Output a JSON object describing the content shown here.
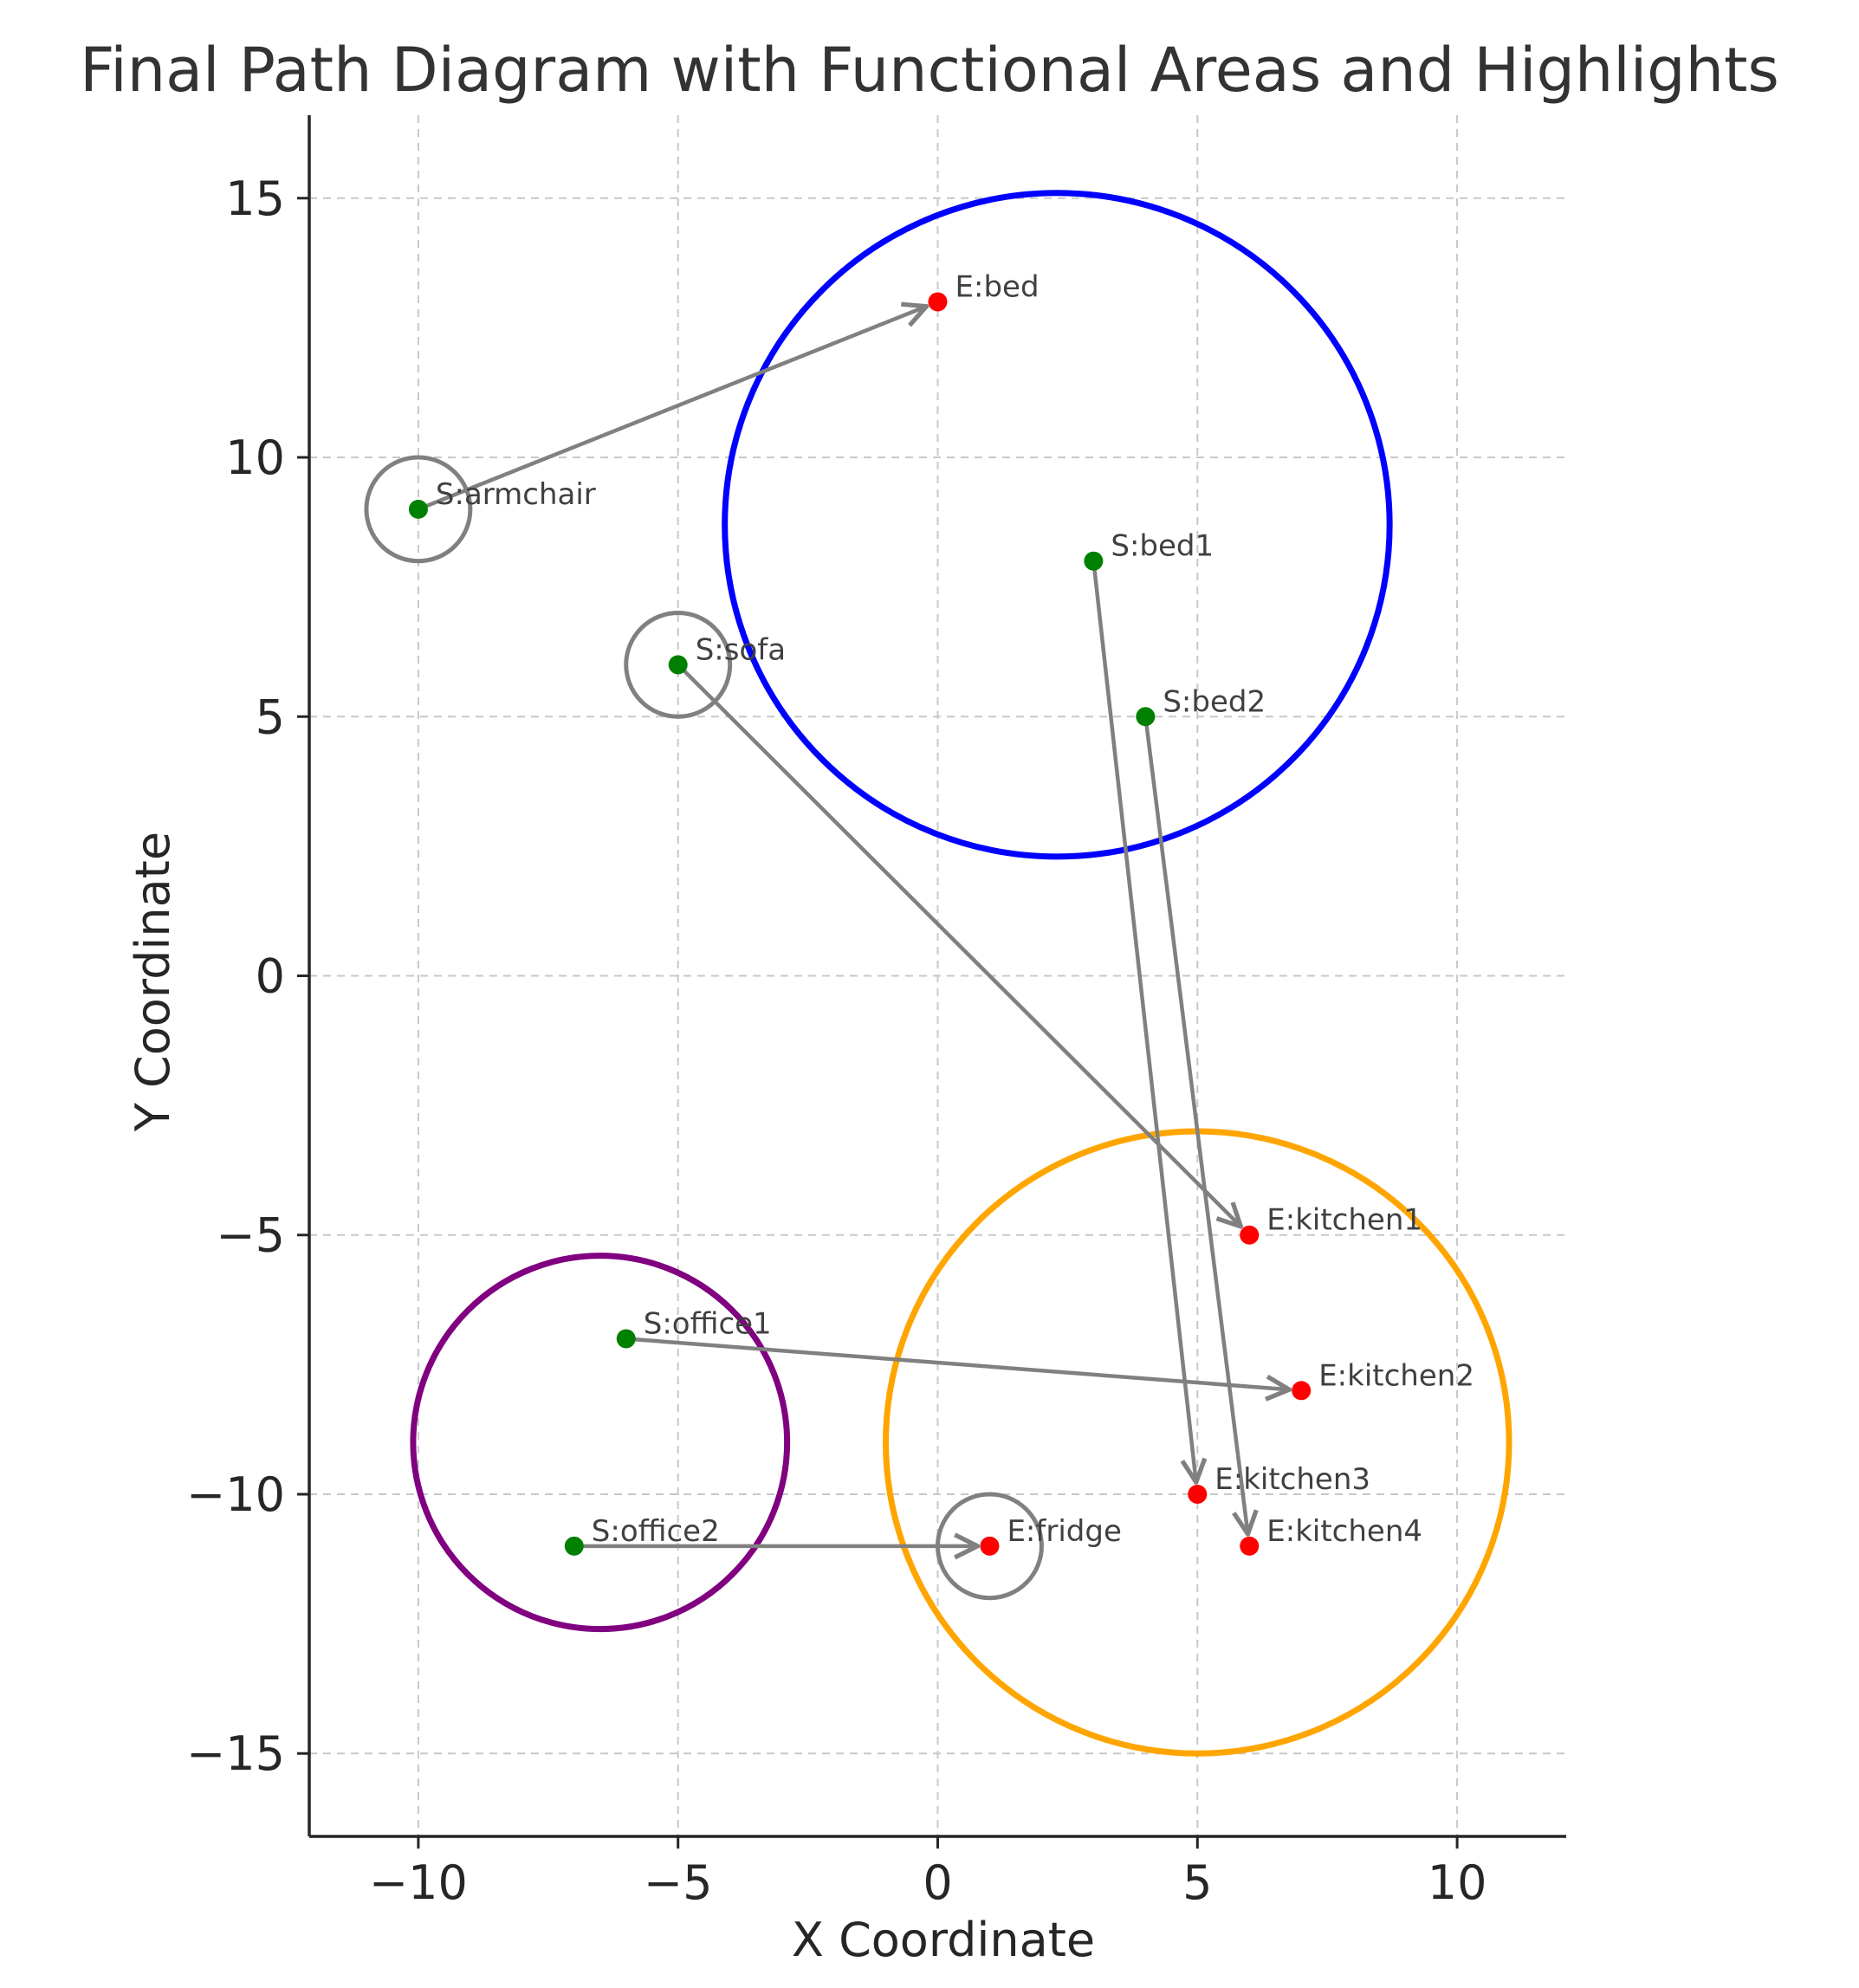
{
  "chart_data": {
    "type": "scatter",
    "title": "Final Path Diagram with Functional Areas and Highlights",
    "xlabel": "X Coordinate",
    "ylabel": "Y Coordinate",
    "xlim": [
      -12.1,
      12.1
    ],
    "ylim": [
      -16.6,
      16.6
    ],
    "xticks": [
      -10,
      -5,
      0,
      5,
      10
    ],
    "yticks": [
      15,
      10,
      5,
      0,
      -5,
      -10,
      -15
    ],
    "grid": true,
    "colors": {
      "start": "#008000",
      "end": "#ff0000",
      "path": "#808080",
      "highlight": "#808080",
      "bedroom_area": "#0000ff",
      "kitchen_area": "#ffa500",
      "office_area": "#800080"
    },
    "areas": [
      {
        "name": "bedroom-area",
        "color": "#0000ff",
        "center": [
          2.3,
          8.7
        ],
        "radius": 6.4
      },
      {
        "name": "kitchen-area",
        "color": "#ffa500",
        "center": [
          5.0,
          -9.0
        ],
        "radius": 6.0
      },
      {
        "name": "office-area",
        "color": "#800080",
        "center": [
          -6.5,
          -9.0
        ],
        "radius": 3.6
      }
    ],
    "highlights": [
      {
        "name": "armchair-highlight",
        "center": [
          -10,
          9
        ],
        "radius": 1.0
      },
      {
        "name": "sofa-highlight",
        "center": [
          -5,
          6
        ],
        "radius": 1.0
      },
      {
        "name": "fridge-highlight",
        "center": [
          1,
          -11
        ],
        "radius": 1.0
      }
    ],
    "start_points": [
      {
        "label": "S:armchair",
        "x": -10,
        "y": 9
      },
      {
        "label": "S:bed1",
        "x": 3,
        "y": 8
      },
      {
        "label": "S:sofa",
        "x": -5,
        "y": 6
      },
      {
        "label": "S:bed2",
        "x": 4,
        "y": 5
      },
      {
        "label": "S:office1",
        "x": -6,
        "y": -7
      },
      {
        "label": "S:office2",
        "x": -7,
        "y": -11
      }
    ],
    "end_points": [
      {
        "label": "E:bed",
        "x": 0,
        "y": 13
      },
      {
        "label": "E:kitchen1",
        "x": 6,
        "y": -5
      },
      {
        "label": "E:kitchen2",
        "x": 7,
        "y": -8
      },
      {
        "label": "E:kitchen3",
        "x": 5,
        "y": -10
      },
      {
        "label": "E:fridge",
        "x": 1,
        "y": -11
      },
      {
        "label": "E:kitchen4",
        "x": 6,
        "y": -11
      }
    ],
    "paths": [
      {
        "from": [
          -10,
          9
        ],
        "to": [
          0,
          13
        ]
      },
      {
        "from": [
          -5,
          6
        ],
        "to": [
          6,
          -5
        ]
      },
      {
        "from": [
          -6,
          -7
        ],
        "to": [
          7,
          -8
        ]
      },
      {
        "from": [
          3,
          8
        ],
        "to": [
          5,
          -10
        ]
      },
      {
        "from": [
          4,
          5
        ],
        "to": [
          6,
          -11
        ]
      },
      {
        "from": [
          -7,
          -11
        ],
        "to": [
          1,
          -11
        ]
      }
    ]
  }
}
